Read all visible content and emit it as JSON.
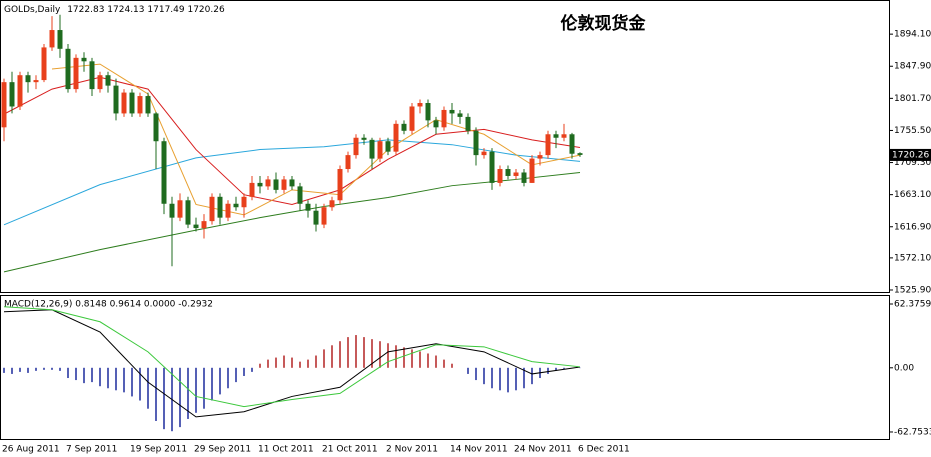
{
  "chart_data": [
    {
      "type": "candlestick",
      "title": "伦敦现货金",
      "symbol": "GOLDs,Daily",
      "up_color": "#e8401c",
      "down_color": "#1f6b1f",
      "categories": [
        "26 Aug 2011",
        null,
        null,
        null,
        null,
        null,
        null,
        null,
        "7 Sep 2011",
        null,
        null,
        null,
        null,
        null,
        null,
        null,
        "19 Sep 2011",
        null,
        null,
        null,
        null,
        null,
        null,
        null,
        "29 Sep 2011",
        null,
        null,
        null,
        null,
        null,
        null,
        null,
        "11 Oct 2011",
        null,
        null,
        null,
        null,
        null,
        null,
        null,
        "21 Oct 2011",
        null,
        null,
        null,
        null,
        null,
        null,
        null,
        "2 Nov 2011",
        null,
        null,
        null,
        null,
        null,
        null,
        null,
        "14 Nov 2011",
        null,
        null,
        null,
        null,
        null,
        null,
        null,
        "24 Nov 2011",
        null,
        null,
        null,
        null,
        null,
        null,
        null,
        "6 Dec 2011"
      ],
      "open": [
        1760,
        1825,
        1790,
        1835,
        1825,
        1828,
        1875,
        1900,
        1873,
        1815,
        1860,
        1855,
        1815,
        1835,
        1820,
        1780,
        1810,
        1780,
        1805,
        1780,
        1740,
        1650,
        1630,
        1655,
        1620,
        1615,
        1625,
        1660,
        1630,
        1650,
        1645,
        1660,
        1680,
        1675,
        1685,
        1670,
        1685,
        1675,
        1650,
        1640,
        1620,
        1645,
        1655,
        1700,
        1720,
        1745,
        1742,
        1715,
        1740,
        1725,
        1765,
        1755,
        1790,
        1795,
        1770,
        1760,
        1785,
        1780,
        1775,
        1755,
        1720,
        1725,
        1680,
        1700,
        1690,
        1695,
        1680,
        1715,
        1720,
        1750,
        1745,
        1750,
        1722.83
      ],
      "high": [
        1830,
        1840,
        1840,
        1840,
        1835,
        1880,
        1920,
        1922,
        1880,
        1865,
        1868,
        1860,
        1840,
        1840,
        1830,
        1815,
        1815,
        1810,
        1810,
        1782,
        1745,
        1660,
        1665,
        1660,
        1630,
        1635,
        1665,
        1665,
        1655,
        1660,
        1665,
        1690,
        1690,
        1690,
        1695,
        1690,
        1690,
        1680,
        1655,
        1650,
        1650,
        1660,
        1705,
        1725,
        1750,
        1750,
        1745,
        1745,
        1745,
        1770,
        1770,
        1795,
        1800,
        1800,
        1775,
        1790,
        1795,
        1785,
        1780,
        1760,
        1730,
        1730,
        1705,
        1705,
        1700,
        1700,
        1720,
        1725,
        1755,
        1755,
        1765,
        1752,
        1724.13
      ],
      "low": [
        1740,
        1780,
        1785,
        1810,
        1815,
        1825,
        1870,
        1860,
        1810,
        1810,
        1840,
        1805,
        1810,
        1810,
        1770,
        1775,
        1775,
        1775,
        1775,
        1700,
        1635,
        1560,
        1625,
        1615,
        1610,
        1600,
        1620,
        1620,
        1625,
        1640,
        1630,
        1655,
        1665,
        1670,
        1665,
        1665,
        1670,
        1640,
        1630,
        1610,
        1615,
        1640,
        1650,
        1695,
        1715,
        1735,
        1700,
        1710,
        1720,
        1720,
        1750,
        1750,
        1780,
        1760,
        1750,
        1755,
        1765,
        1765,
        1750,
        1705,
        1715,
        1670,
        1675,
        1685,
        1685,
        1675,
        1680,
        1705,
        1715,
        1730,
        1740,
        1715,
        1717.49
      ],
      "close": [
        1825,
        1790,
        1835,
        1825,
        1828,
        1875,
        1900,
        1873,
        1815,
        1860,
        1855,
        1815,
        1835,
        1820,
        1780,
        1810,
        1780,
        1805,
        1780,
        1740,
        1650,
        1630,
        1655,
        1620,
        1615,
        1625,
        1660,
        1630,
        1650,
        1645,
        1660,
        1680,
        1675,
        1685,
        1670,
        1685,
        1675,
        1650,
        1640,
        1620,
        1645,
        1655,
        1700,
        1720,
        1745,
        1742,
        1715,
        1740,
        1725,
        1765,
        1755,
        1790,
        1795,
        1770,
        1760,
        1785,
        1780,
        1775,
        1755,
        1720,
        1725,
        1680,
        1700,
        1690,
        1695,
        1680,
        1715,
        1720,
        1750,
        1745,
        1750,
        1722,
        1720.26
      ],
      "series": [
        {
          "color": "#2aa7dc",
          "x": [
            0,
            12,
            24,
            32,
            40,
            48,
            56,
            64,
            72
          ],
          "values": [
            1619.7,
            1677.5,
            1716,
            1728,
            1732,
            1742,
            1735,
            1720,
            1711
          ]
        },
        {
          "color": "#2e7d1e",
          "x": [
            0,
            12,
            24,
            32,
            40,
            48,
            56,
            64,
            72
          ],
          "values": [
            1552,
            1584,
            1612,
            1630,
            1646,
            1659,
            1676,
            1685,
            1695
          ]
        },
        {
          "color": "#d81e1e",
          "x": [
            0,
            6,
            12,
            18,
            24,
            30,
            36,
            42,
            48,
            54,
            60,
            66,
            72
          ],
          "values": [
            1779,
            1815,
            1832,
            1815,
            1728,
            1663,
            1649,
            1670,
            1714,
            1750,
            1757,
            1742,
            1731
          ]
        },
        {
          "color": "#e8a030",
          "x": [
            6,
            12,
            18,
            24,
            30,
            36,
            42,
            48,
            54,
            60,
            66,
            72
          ],
          "values": [
            1844,
            1851,
            1808,
            1649,
            1634,
            1670,
            1663,
            1728,
            1771,
            1750,
            1706,
            1720
          ]
        }
      ],
      "ylim": [
        1523,
        1941.8
      ],
      "yticks": [
        {
          "value": 1894.1,
          "label": "1894.10"
        },
        {
          "value": 1847.9,
          "label": "1847.90"
        },
        {
          "value": 1801.7,
          "label": "1801.70"
        },
        {
          "value": 1755.5,
          "label": "1755.50"
        },
        {
          "value": 1709.3,
          "label": "1709.30"
        },
        {
          "value": 1663.1,
          "label": "1663.10"
        },
        {
          "value": 1616.9,
          "label": "1616.90"
        },
        {
          "value": 1572.1,
          "label": "1572.10"
        },
        {
          "value": 1525.9,
          "label": "1525.90"
        }
      ]
    },
    {
      "type": "macd",
      "label": "MACD(12,26,9) 0.8148 0.9614 0.0000 -0.2932",
      "pos_color": "#b22222",
      "neg_color": "#1c2a9c",
      "histogram": [
        -5,
        -6,
        -4,
        -5,
        -3,
        -2,
        -2,
        -3,
        -10,
        -12,
        -15,
        -14,
        -18,
        -20,
        -22,
        -24,
        -28,
        -32,
        -40,
        -52,
        -60,
        -62,
        -58,
        -50,
        -44,
        -40,
        -32,
        -26,
        -20,
        -14,
        -8,
        -4,
        4,
        8,
        10,
        12,
        10,
        6,
        8,
        12,
        18,
        22,
        26,
        30,
        32,
        30,
        28,
        26,
        24,
        22,
        20,
        18,
        16,
        14,
        12,
        8,
        4,
        0,
        -6,
        -12,
        -16,
        -20,
        -22,
        -24,
        -22,
        -20,
        -16,
        -10,
        -6,
        -3,
        -1,
        0,
        -0.2932
      ],
      "series": [
        {
          "color": "#000000",
          "x": [
            0,
            6,
            12,
            18,
            24,
            30,
            36,
            42,
            48,
            54,
            60,
            66,
            72
          ],
          "values": [
            54.8,
            56.7,
            35,
            -14,
            -48,
            -43,
            -28,
            -19,
            15.6,
            23.5,
            15.6,
            -6,
            0.8148
          ]
        },
        {
          "color": "#3cc83c",
          "x": [
            0,
            6,
            12,
            18,
            24,
            30,
            36,
            42,
            48,
            54,
            60,
            66,
            72
          ],
          "values": [
            59.7,
            56.7,
            45,
            15.6,
            -28,
            -38,
            -31,
            -25,
            6,
            22.5,
            20.5,
            6,
            0.9614
          ]
        }
      ],
      "ylim": [
        -70.6,
        70.2
      ],
      "yticks": [
        {
          "value": 62.3759,
          "label": "62.3759"
        },
        {
          "value": 0,
          "label": "0.00"
        },
        {
          "value": -62.7533,
          "label": "-62.7533"
        }
      ]
    }
  ]
}
